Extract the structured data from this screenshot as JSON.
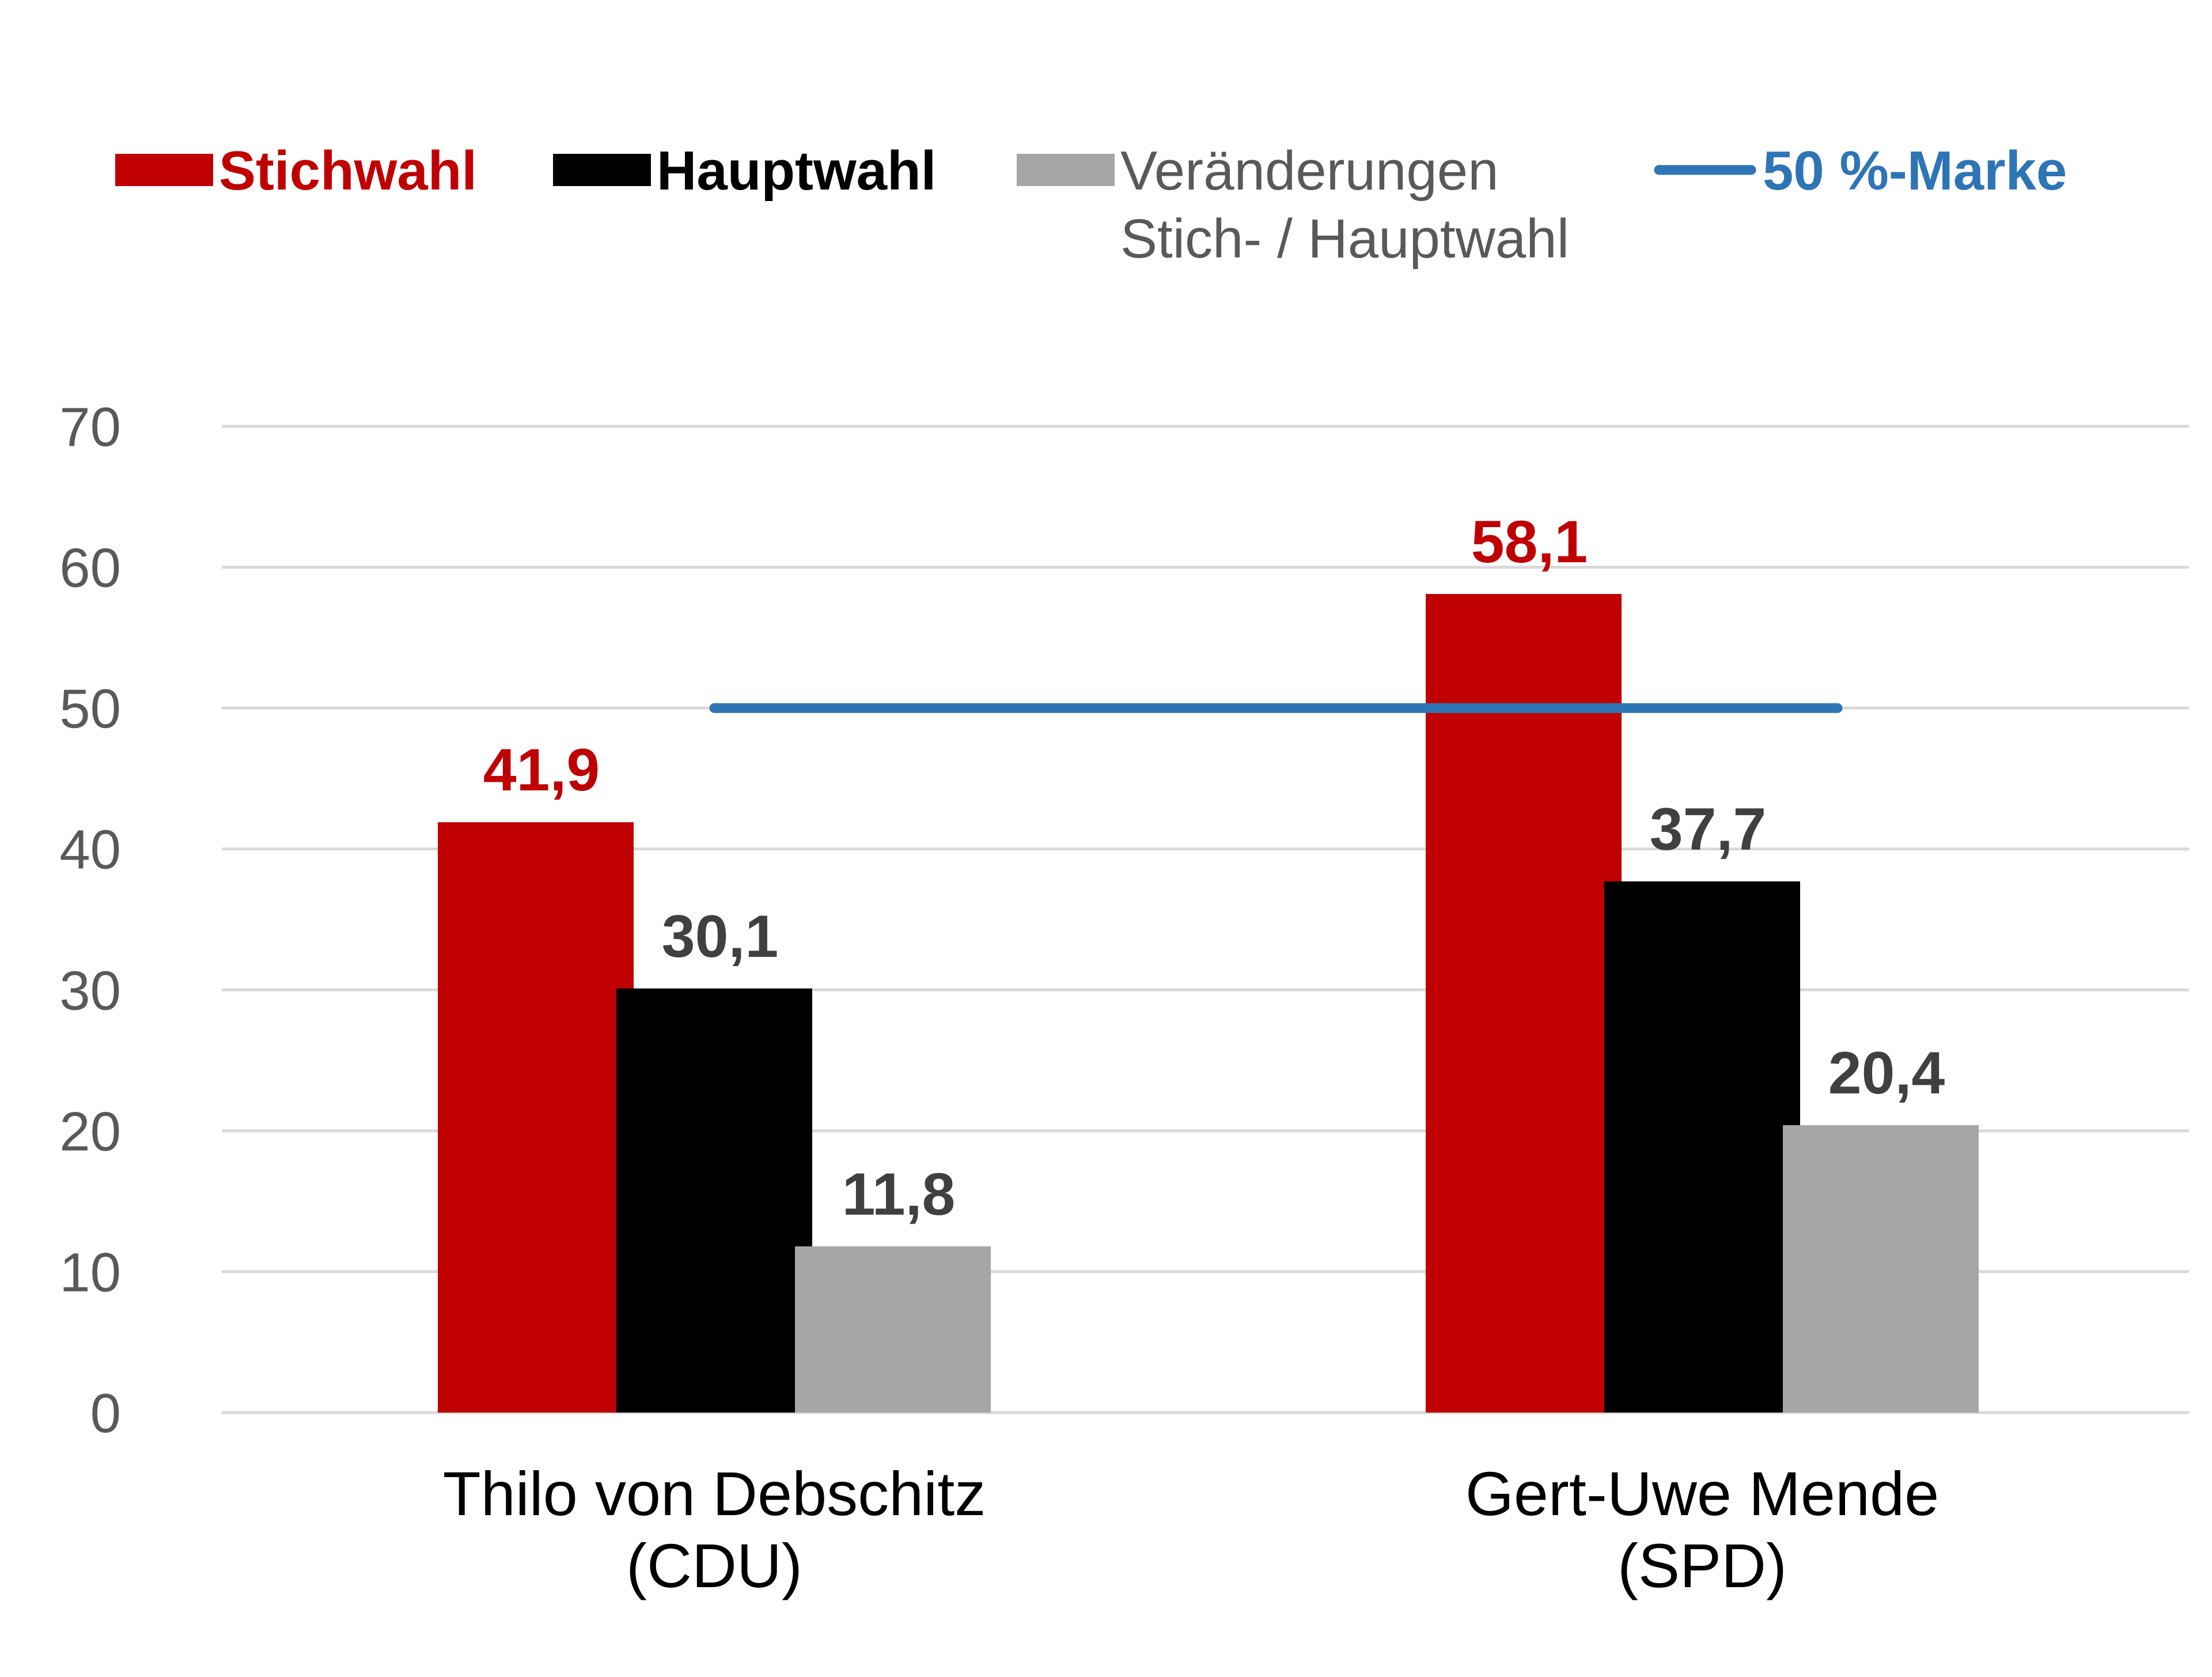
{
  "chart_data": {
    "type": "bar",
    "categories": [
      [
        "Thilo von Debschitz",
        "(CDU)"
      ],
      [
        "Gert-Uwe Mende",
        "(SPD)"
      ]
    ],
    "series": [
      {
        "name": "Stichwahl",
        "values": [
          41.9,
          58.1
        ],
        "labels": [
          "41,9",
          "58,1"
        ],
        "color": "#c00000",
        "label_color": "#c00000",
        "legend_bold": true
      },
      {
        "name": "Hauptwahl",
        "values": [
          30.1,
          37.7
        ],
        "labels": [
          "30,1",
          "37,7"
        ],
        "color": "#000000",
        "label_color": "#404040",
        "legend_bold": true
      },
      {
        "name": [
          "Veränderungen",
          "Stich- / Hauptwahl"
        ],
        "values": [
          11.8,
          20.4
        ],
        "labels": [
          "11,8",
          "20,4"
        ],
        "color": "#a6a6a6",
        "label_color": "#404040",
        "legend_bold": false
      }
    ],
    "reference_line": {
      "name": "50 %-Marke",
      "value": 50,
      "color": "#2e75b6"
    },
    "ylim": [
      0,
      70
    ],
    "yticks": [
      "0",
      "10",
      "20",
      "30",
      "40",
      "50",
      "60",
      "70"
    ],
    "ytick_values": [
      0,
      10,
      20,
      30,
      40,
      50,
      60,
      70
    ],
    "grid": true,
    "legend_position": "top",
    "colors": {
      "grid": "#d9d9d9",
      "tick_text": "#595959",
      "legend_gray_text": "#595959"
    }
  }
}
